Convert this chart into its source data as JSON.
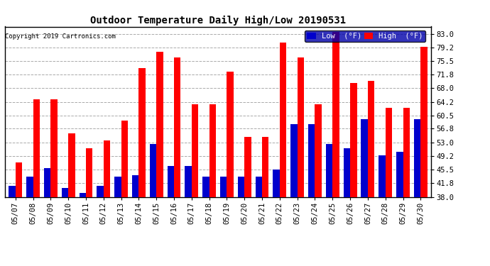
{
  "title": "Outdoor Temperature Daily High/Low 20190531",
  "copyright": "Copyright 2019 Cartronics.com",
  "dates": [
    "05/07",
    "05/08",
    "05/09",
    "05/10",
    "05/11",
    "05/12",
    "05/13",
    "05/14",
    "05/15",
    "05/16",
    "05/17",
    "05/18",
    "05/19",
    "05/20",
    "05/21",
    "05/22",
    "05/23",
    "05/24",
    "05/25",
    "05/26",
    "05/27",
    "05/28",
    "05/29",
    "05/30"
  ],
  "highs": [
    47.5,
    65.0,
    65.0,
    55.5,
    51.5,
    53.5,
    59.0,
    73.5,
    78.0,
    76.5,
    63.5,
    63.5,
    72.5,
    54.5,
    54.5,
    80.5,
    76.5,
    63.5,
    83.5,
    69.5,
    70.0,
    62.5,
    62.5,
    79.5
  ],
  "lows": [
    41.0,
    43.5,
    46.0,
    40.5,
    39.0,
    41.0,
    43.5,
    44.0,
    52.5,
    46.5,
    46.5,
    43.5,
    43.5,
    43.5,
    43.5,
    45.5,
    58.0,
    58.0,
    52.5,
    51.5,
    59.5,
    49.5,
    50.5,
    59.5
  ],
  "high_color": "#ff0000",
  "low_color": "#0000cc",
  "ylim_min": 38.0,
  "ylim_max": 85.0,
  "yticks": [
    38.0,
    41.8,
    45.5,
    49.2,
    53.0,
    56.8,
    60.5,
    64.2,
    68.0,
    71.8,
    75.5,
    79.2,
    83.0
  ],
  "bg_color": "#ffffff",
  "grid_color": "#aaaaaa",
  "bar_width": 0.38,
  "legend_low_label": "Low  (°F)",
  "legend_high_label": "High  (°F)"
}
